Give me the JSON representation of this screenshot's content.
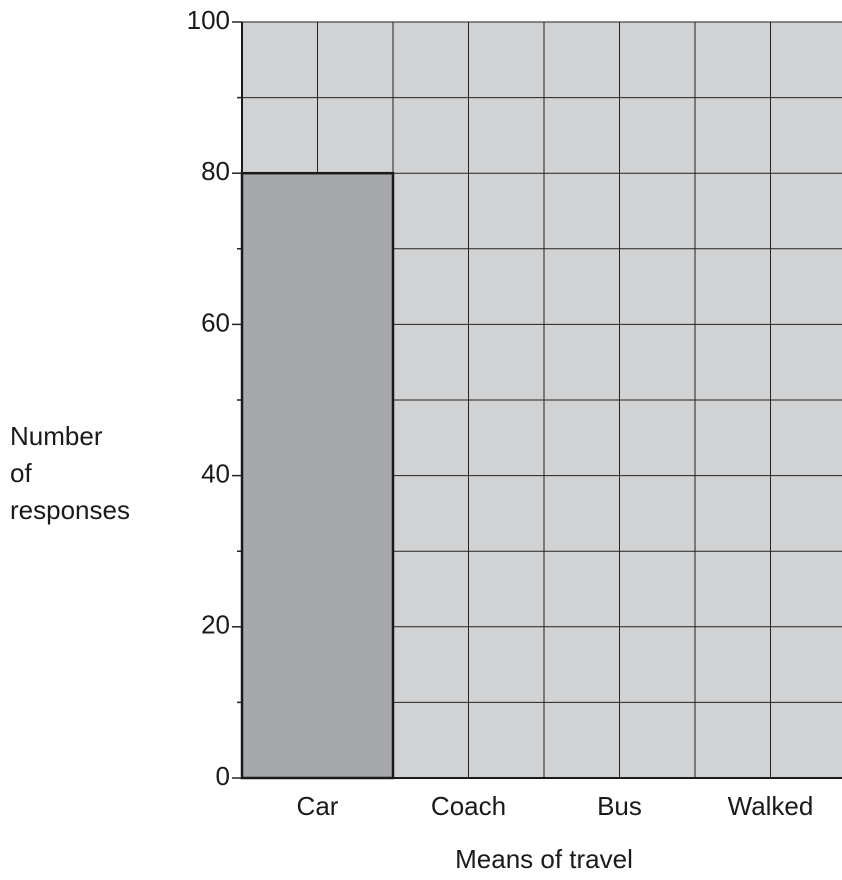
{
  "chart_data": {
    "type": "bar",
    "categories": [
      "Car",
      "Coach",
      "Bus",
      "Walked"
    ],
    "values": [
      80,
      null,
      null,
      null
    ],
    "color": "#a7a8ab",
    "background": "#d1d2d4",
    "xlabel": "Means of travel",
    "ylabel": "Number\nof\nresponses",
    "ylim": [
      0,
      100
    ],
    "yticks": [
      0,
      20,
      40,
      60,
      80,
      100
    ],
    "minor_yticks": [
      10,
      30,
      50,
      70,
      90
    ],
    "grid": true
  }
}
